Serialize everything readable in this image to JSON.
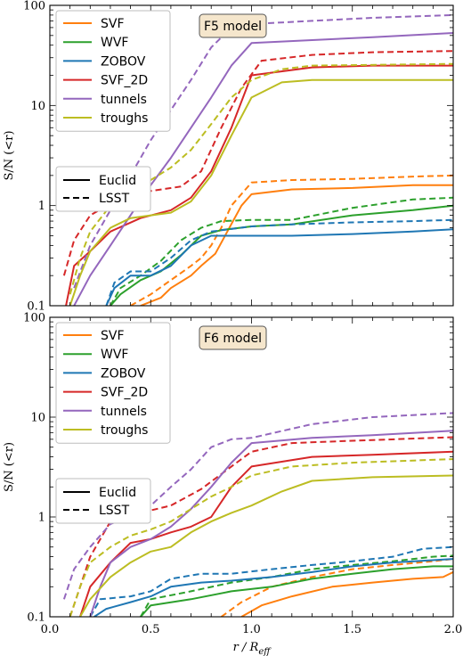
{
  "chart_data": [
    {
      "type": "line",
      "annotation": "F5 model",
      "title": "",
      "xlabel": "r / R_eff",
      "ylabel": "S/N  (<r)",
      "xlim": [
        0.0,
        2.0
      ],
      "ylim": [
        0.1,
        100
      ],
      "yscale": "log",
      "x_ticks": [
        "0.0",
        "0.5",
        "1.0",
        "1.5",
        "2.0"
      ],
      "y_ticks": [
        "0.1",
        "1",
        "10",
        "100"
      ],
      "legend_position": "top-left",
      "style_legend_position": "middle-left",
      "styles": [
        {
          "name": "Euclid",
          "dash": "solid"
        },
        {
          "name": "LSST",
          "dash": "dashed"
        }
      ],
      "series": [
        {
          "name": "SVF",
          "color": "#ff7f0e",
          "survey": "Euclid",
          "x": [
            0.45,
            0.55,
            0.6,
            0.7,
            0.75,
            0.82,
            0.88,
            0.95,
            1.0,
            1.2,
            1.5,
            1.8,
            2.0
          ],
          "y": [
            0.1,
            0.12,
            0.15,
            0.2,
            0.25,
            0.33,
            0.55,
            1.0,
            1.3,
            1.45,
            1.5,
            1.6,
            1.6
          ]
        },
        {
          "name": "SVF",
          "color": "#ff7f0e",
          "survey": "LSST",
          "x": [
            0.4,
            0.5,
            0.6,
            0.7,
            0.75,
            0.8,
            0.85,
            0.9,
            1.0,
            1.2,
            1.5,
            1.8,
            2.0
          ],
          "y": [
            0.1,
            0.13,
            0.18,
            0.25,
            0.3,
            0.4,
            0.6,
            1.0,
            1.7,
            1.8,
            1.85,
            1.95,
            2.0
          ]
        },
        {
          "name": "WVF",
          "color": "#2ca02c",
          "survey": "Euclid",
          "x": [
            0.3,
            0.35,
            0.45,
            0.55,
            0.65,
            0.75,
            0.85,
            1.0,
            1.2,
            1.5,
            1.8,
            2.0
          ],
          "y": [
            0.1,
            0.13,
            0.18,
            0.22,
            0.32,
            0.5,
            0.57,
            0.62,
            0.65,
            0.8,
            0.9,
            1.0
          ]
        },
        {
          "name": "WVF",
          "color": "#2ca02c",
          "survey": "LSST",
          "x": [
            0.3,
            0.35,
            0.45,
            0.55,
            0.65,
            0.75,
            0.85,
            1.0,
            1.2,
            1.5,
            1.8,
            2.0
          ],
          "y": [
            0.1,
            0.15,
            0.2,
            0.28,
            0.45,
            0.6,
            0.7,
            0.72,
            0.72,
            0.95,
            1.15,
            1.2
          ]
        },
        {
          "name": "ZOBOV",
          "color": "#1f77b4",
          "survey": "Euclid",
          "x": [
            0.28,
            0.32,
            0.4,
            0.5,
            0.6,
            0.7,
            0.8,
            1.0,
            1.2,
            1.5,
            1.8,
            2.0
          ],
          "y": [
            0.1,
            0.15,
            0.2,
            0.2,
            0.25,
            0.4,
            0.5,
            0.5,
            0.5,
            0.52,
            0.55,
            0.58
          ]
        },
        {
          "name": "ZOBOV",
          "color": "#1f77b4",
          "survey": "LSST",
          "x": [
            0.28,
            0.32,
            0.4,
            0.5,
            0.6,
            0.7,
            0.8,
            1.0,
            1.2,
            1.5,
            1.8,
            2.0
          ],
          "y": [
            0.1,
            0.17,
            0.22,
            0.22,
            0.3,
            0.45,
            0.55,
            0.62,
            0.65,
            0.68,
            0.7,
            0.72
          ]
        },
        {
          "name": "SVF_2D",
          "color": "#d62728",
          "survey": "Euclid",
          "x": [
            0.08,
            0.12,
            0.2,
            0.3,
            0.45,
            0.6,
            0.7,
            0.8,
            0.9,
            1.0,
            1.3,
            1.6,
            2.0
          ],
          "y": [
            0.1,
            0.25,
            0.35,
            0.55,
            0.75,
            0.9,
            1.2,
            2.2,
            6.0,
            20,
            24,
            25,
            25
          ]
        },
        {
          "name": "SVF_2D",
          "color": "#d62728",
          "survey": "LSST",
          "x": [
            0.07,
            0.12,
            0.2,
            0.35,
            0.5,
            0.65,
            0.75,
            0.85,
            0.95,
            1.05,
            1.3,
            1.6,
            2.0
          ],
          "y": [
            0.2,
            0.45,
            0.8,
            1.2,
            1.4,
            1.55,
            2.2,
            6.0,
            15,
            28,
            32,
            34,
            35
          ]
        },
        {
          "name": "tunnels",
          "color": "#9467bd",
          "survey": "Euclid",
          "x": [
            0.12,
            0.2,
            0.3,
            0.4,
            0.5,
            0.6,
            0.7,
            0.8,
            0.9,
            1.0,
            1.3,
            1.6,
            2.0
          ],
          "y": [
            0.1,
            0.2,
            0.4,
            0.8,
            1.6,
            3.0,
            6.0,
            12,
            25,
            42,
            45,
            48,
            53
          ]
        },
        {
          "name": "tunnels",
          "color": "#9467bd",
          "survey": "LSST",
          "x": [
            0.12,
            0.2,
            0.3,
            0.4,
            0.5,
            0.6,
            0.7,
            0.8,
            0.9,
            1.0,
            1.3,
            1.6,
            2.0
          ],
          "y": [
            0.15,
            0.4,
            0.9,
            2.0,
            4.5,
            9.0,
            18,
            38,
            60,
            65,
            70,
            75,
            80
          ]
        },
        {
          "name": "troughs",
          "color": "#bcbd22",
          "survey": "Euclid",
          "x": [
            0.1,
            0.15,
            0.2,
            0.3,
            0.4,
            0.5,
            0.6,
            0.7,
            0.8,
            0.9,
            1.0,
            1.15,
            1.3,
            2.0
          ],
          "y": [
            0.1,
            0.2,
            0.35,
            0.6,
            0.75,
            0.8,
            0.85,
            1.1,
            2.0,
            5.0,
            12,
            17,
            18,
            18
          ]
        },
        {
          "name": "troughs",
          "color": "#bcbd22",
          "survey": "LSST",
          "x": [
            0.1,
            0.15,
            0.2,
            0.3,
            0.4,
            0.5,
            0.6,
            0.7,
            0.8,
            0.9,
            1.0,
            1.15,
            1.3,
            2.0
          ],
          "y": [
            0.13,
            0.3,
            0.55,
            1.0,
            1.5,
            1.8,
            2.4,
            3.6,
            6.5,
            12,
            18,
            23,
            25,
            26
          ]
        }
      ]
    },
    {
      "type": "line",
      "annotation": "F6 model",
      "title": "",
      "xlabel": "r / R_eff",
      "ylabel": "S/N  (<r)",
      "xlim": [
        0.0,
        2.0
      ],
      "ylim": [
        0.1,
        100
      ],
      "yscale": "log",
      "x_ticks": [
        "0.0",
        "0.5",
        "1.0",
        "1.5",
        "2.0"
      ],
      "y_ticks": [
        "0.1",
        "1",
        "10",
        "100"
      ],
      "legend_position": "top-left",
      "style_legend_position": "middle-left",
      "styles": [
        {
          "name": "Euclid",
          "dash": "solid"
        },
        {
          "name": "LSST",
          "dash": "dashed"
        }
      ],
      "series": [
        {
          "name": "SVF",
          "color": "#ff7f0e",
          "survey": "Euclid",
          "x": [
            0.95,
            1.05,
            1.2,
            1.4,
            1.6,
            1.8,
            1.95,
            2.0
          ],
          "y": [
            0.1,
            0.13,
            0.16,
            0.2,
            0.22,
            0.24,
            0.25,
            0.28
          ]
        },
        {
          "name": "SVF",
          "color": "#ff7f0e",
          "survey": "LSST",
          "x": [
            0.85,
            0.95,
            1.1,
            1.3,
            1.5,
            1.7,
            1.9,
            2.0
          ],
          "y": [
            0.1,
            0.14,
            0.2,
            0.25,
            0.3,
            0.33,
            0.36,
            0.38
          ]
        },
        {
          "name": "WVF",
          "color": "#2ca02c",
          "survey": "Euclid",
          "x": [
            0.45,
            0.5,
            0.7,
            0.9,
            1.1,
            1.3,
            1.5,
            1.7,
            1.9,
            2.0
          ],
          "y": [
            0.1,
            0.13,
            0.15,
            0.18,
            0.2,
            0.24,
            0.27,
            0.3,
            0.32,
            0.32
          ]
        },
        {
          "name": "WVF",
          "color": "#2ca02c",
          "survey": "LSST",
          "x": [
            0.45,
            0.5,
            0.7,
            0.9,
            1.1,
            1.3,
            1.5,
            1.7,
            1.9,
            2.0
          ],
          "y": [
            0.1,
            0.15,
            0.18,
            0.22,
            0.25,
            0.3,
            0.33,
            0.36,
            0.4,
            0.41
          ]
        },
        {
          "name": "ZOBOV",
          "color": "#1f77b4",
          "survey": "Euclid",
          "x": [
            0.22,
            0.28,
            0.4,
            0.5,
            0.6,
            0.75,
            0.9,
            1.1,
            1.3,
            1.5,
            1.7,
            2.0
          ],
          "y": [
            0.1,
            0.12,
            0.14,
            0.16,
            0.2,
            0.22,
            0.23,
            0.25,
            0.28,
            0.32,
            0.35,
            0.38
          ]
        },
        {
          "name": "ZOBOV",
          "color": "#1f77b4",
          "survey": "LSST",
          "x": [
            0.2,
            0.25,
            0.4,
            0.5,
            0.6,
            0.75,
            0.9,
            1.1,
            1.3,
            1.5,
            1.7,
            1.85,
            2.0
          ],
          "y": [
            0.1,
            0.15,
            0.16,
            0.18,
            0.24,
            0.27,
            0.27,
            0.3,
            0.33,
            0.36,
            0.4,
            0.48,
            0.5
          ]
        },
        {
          "name": "SVF_2D",
          "color": "#d62728",
          "survey": "Euclid",
          "x": [
            0.15,
            0.2,
            0.3,
            0.4,
            0.5,
            0.6,
            0.7,
            0.8,
            0.9,
            1.0,
            1.3,
            1.6,
            2.0
          ],
          "y": [
            0.1,
            0.2,
            0.35,
            0.55,
            0.6,
            0.7,
            0.8,
            1.0,
            2.0,
            3.2,
            4.0,
            4.2,
            4.5
          ]
        },
        {
          "name": "SVF_2D",
          "color": "#d62728",
          "survey": "LSST",
          "x": [
            0.1,
            0.15,
            0.2,
            0.3,
            0.45,
            0.6,
            0.75,
            0.9,
            1.0,
            1.2,
            1.5,
            2.0
          ],
          "y": [
            0.1,
            0.2,
            0.4,
            0.9,
            1.1,
            1.3,
            1.9,
            3.2,
            4.5,
            5.5,
            5.8,
            6.3
          ]
        },
        {
          "name": "tunnels",
          "color": "#9467bd",
          "survey": "Euclid",
          "x": [
            0.2,
            0.25,
            0.3,
            0.4,
            0.5,
            0.6,
            0.7,
            0.8,
            0.9,
            1.0,
            1.3,
            1.6,
            2.0
          ],
          "y": [
            0.1,
            0.2,
            0.35,
            0.5,
            0.6,
            0.8,
            1.2,
            2.0,
            3.5,
            5.5,
            6.2,
            6.6,
            7.3
          ]
        },
        {
          "name": "tunnels",
          "color": "#9467bd",
          "survey": "LSST",
          "x": [
            0.07,
            0.12,
            0.2,
            0.3,
            0.4,
            0.5,
            0.6,
            0.7,
            0.8,
            0.9,
            1.0,
            1.3,
            1.6,
            2.0
          ],
          "y": [
            0.15,
            0.3,
            0.5,
            0.85,
            1.0,
            1.3,
            2.0,
            3.0,
            5.0,
            6.0,
            6.2,
            8.5,
            10.0,
            11.0
          ]
        },
        {
          "name": "troughs",
          "color": "#bcbd22",
          "survey": "Euclid",
          "x": [
            0.15,
            0.2,
            0.3,
            0.4,
            0.5,
            0.6,
            0.7,
            0.8,
            0.9,
            1.0,
            1.15,
            1.3,
            1.6,
            2.0
          ],
          "y": [
            0.1,
            0.15,
            0.25,
            0.35,
            0.45,
            0.5,
            0.7,
            0.9,
            1.1,
            1.3,
            1.8,
            2.3,
            2.5,
            2.6
          ]
        },
        {
          "name": "troughs",
          "color": "#bcbd22",
          "survey": "LSST",
          "x": [
            0.1,
            0.15,
            0.2,
            0.3,
            0.4,
            0.5,
            0.6,
            0.7,
            0.8,
            0.9,
            1.0,
            1.2,
            1.5,
            2.0
          ],
          "y": [
            0.1,
            0.2,
            0.35,
            0.5,
            0.65,
            0.75,
            0.9,
            1.2,
            1.6,
            2.0,
            2.6,
            3.2,
            3.5,
            3.8
          ]
        }
      ]
    }
  ]
}
